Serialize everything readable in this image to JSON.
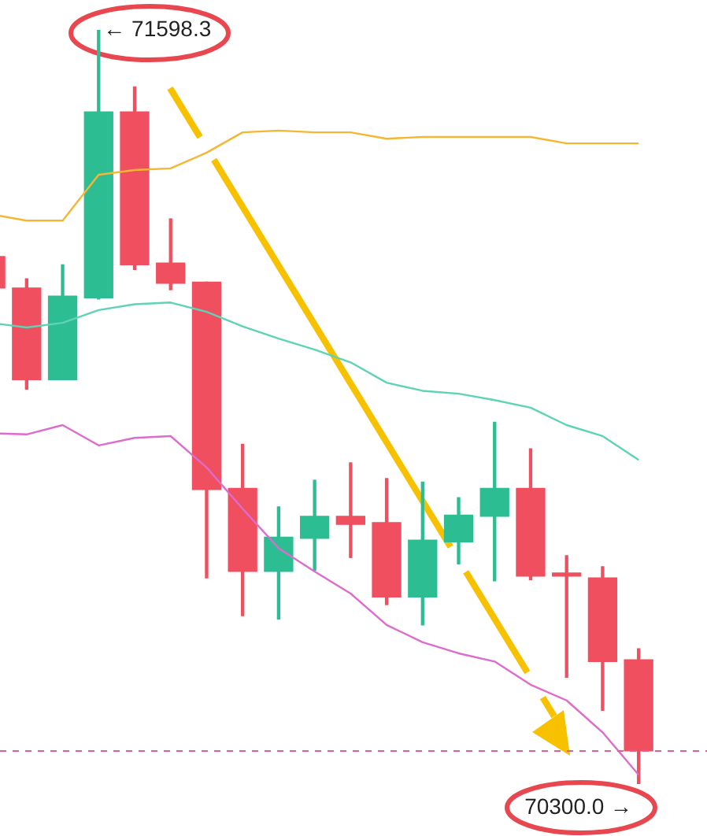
{
  "chart_data": {
    "type": "candlestick",
    "categories": [
      null,
      null,
      null,
      null,
      null,
      null,
      null,
      null,
      null,
      null,
      null,
      null,
      null,
      null,
      null,
      null,
      null,
      null,
      null
    ],
    "ohlc": [
      [
        71208,
        71216,
        71148,
        71154
      ],
      [
        71154,
        71170,
        70980,
        70996
      ],
      [
        70996,
        71194,
        70996,
        71140
      ],
      [
        71137,
        71598.3,
        71135,
        71457
      ],
      [
        71457,
        71500,
        71186,
        71194
      ],
      [
        71197,
        71273,
        71151,
        71162
      ],
      [
        71164,
        71164,
        70655,
        70807
      ],
      [
        70809,
        70885,
        70590,
        70666
      ],
      [
        70666,
        70777,
        70584,
        70725
      ],
      [
        70723,
        70823,
        70668,
        70761
      ],
      [
        70761,
        70853,
        70690,
        70747
      ],
      [
        70750,
        70826,
        70609,
        70622
      ],
      [
        70622,
        70820,
        70574,
        70720
      ],
      [
        70717,
        70793,
        70679,
        70763
      ],
      [
        70761,
        70923,
        70650,
        70809
      ],
      [
        70809,
        70877,
        70652,
        70658
      ],
      [
        70663,
        70693,
        70484,
        70658
      ],
      [
        70655,
        70674,
        70427,
        70511
      ],
      [
        70514,
        70533,
        70300.0,
        70357
      ]
    ],
    "colors": [
      "#ef4f5e",
      "#ef4f5e",
      "#2dbd93",
      "#2dbd93",
      "#ef4f5e",
      "#ef4f5e",
      "#ef4f5e",
      "#ef4f5e",
      "#2dbd93",
      "#2dbd93",
      "#ef4f5e",
      "#ef4f5e",
      "#2dbd93",
      "#2dbd93",
      "#2dbd93",
      "#ef4f5e",
      "#ef4f5e",
      "#ef4f5e",
      "#ef4f5e"
    ],
    "series": [
      {
        "type": "line",
        "color": "#f5b731",
        "values": [
          71281,
          71270,
          71270,
          71349,
          71357,
          71360,
          71387,
          71422,
          71425,
          71422,
          71422,
          71411,
          71414,
          71414,
          71414,
          71414,
          71403,
          71403,
          71403
        ]
      },
      {
        "type": "line",
        "color": "#5fd3b5",
        "values": [
          71094,
          71086,
          71094,
          71116,
          71126,
          71129,
          71113,
          71088,
          71067,
          71048,
          71026,
          70991,
          70977,
          70972,
          70961,
          70948,
          70918,
          70899,
          70858
        ]
      },
      {
        "type": "line",
        "color": "#dd6ccc",
        "values": [
          70904,
          70902,
          70918,
          70883,
          70896,
          70899,
          70845,
          70774,
          70706,
          70666,
          70628,
          70574,
          70544,
          70525,
          70511,
          70471,
          70444,
          70389,
          70316
        ]
      }
    ],
    "ref_lines": [
      {
        "axis": "y",
        "value": 70357,
        "color": "#e0608f",
        "line_style": "dashed"
      }
    ],
    "annotations": [
      "← 71598.3",
      "70300.0 →"
    ],
    "legend": false,
    "marker": "none"
  }
}
